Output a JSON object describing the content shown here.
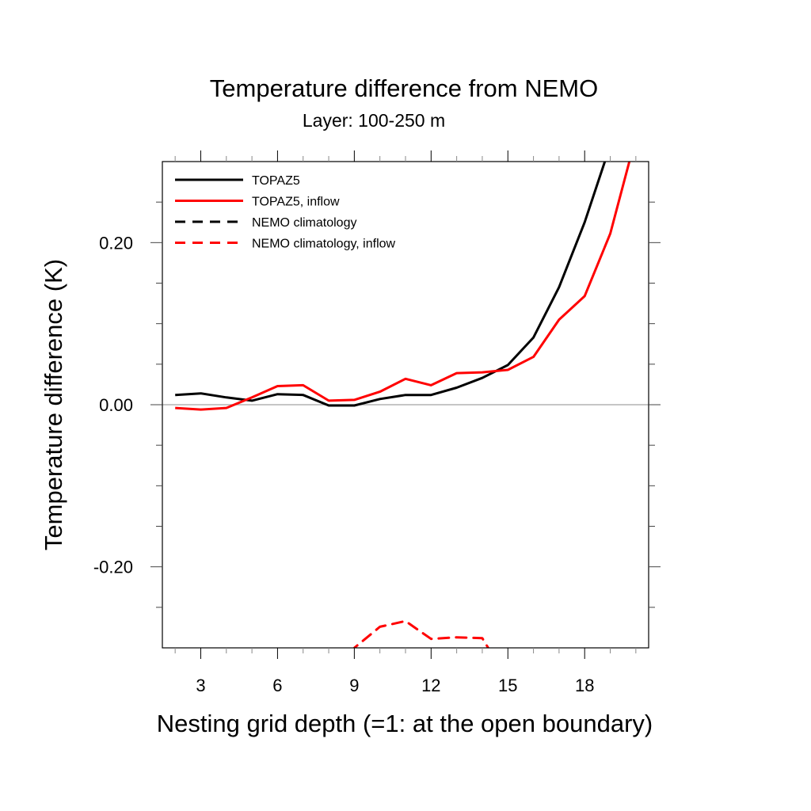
{
  "chart_data": {
    "type": "line",
    "title": "Temperature difference from NEMO",
    "subtitle": "Layer: 100-250 m",
    "xlabel": "Nesting grid depth (=1: at the open boundary)",
    "ylabel": "Temperature difference (K)",
    "xlim": [
      1.5,
      20.5
    ],
    "ylim": [
      -0.3,
      0.3
    ],
    "x_major_ticks": [
      3,
      6,
      9,
      12,
      15,
      18
    ],
    "x_tick_labels": [
      "3",
      "6",
      "9",
      "12",
      "15",
      "18"
    ],
    "x_minor_step": 1,
    "y_major_ticks": [
      -0.2,
      0.0,
      0.2
    ],
    "y_tick_labels": [
      "-0.20",
      "0.00",
      "0.20"
    ],
    "y_minor_step": 0.05,
    "reference_line": {
      "y": 0.0,
      "color": "#b4b4b4"
    },
    "grid": false,
    "legend_position": "top-left",
    "series": [
      {
        "name": "TOPAZ5",
        "color": "#000000",
        "dash": "solid",
        "x": [
          2,
          3,
          4,
          5,
          6,
          7,
          8,
          9,
          10,
          11,
          12,
          13,
          14,
          15,
          16,
          17,
          18,
          19
        ],
        "values": [
          0.012,
          0.014,
          0.009,
          0.005,
          0.013,
          0.012,
          -0.001,
          -0.001,
          0.007,
          0.012,
          0.012,
          0.021,
          0.033,
          0.049,
          0.083,
          0.145,
          0.225,
          0.32
        ]
      },
      {
        "name": "TOPAZ5, inflow",
        "color": "#ff0000",
        "dash": "solid",
        "x": [
          2,
          3,
          4,
          5,
          6,
          7,
          8,
          9,
          10,
          11,
          12,
          13,
          14,
          15,
          16,
          17,
          18,
          19,
          20
        ],
        "values": [
          -0.004,
          -0.006,
          -0.004,
          0.009,
          0.023,
          0.024,
          0.005,
          0.006,
          0.016,
          0.032,
          0.024,
          0.039,
          0.04,
          0.043,
          0.059,
          0.105,
          0.134,
          0.211,
          0.33
        ]
      },
      {
        "name": "NEMO climatology",
        "color": "#000000",
        "dash": "dashed",
        "x": [],
        "values": []
      },
      {
        "name": "NEMO climatology, inflow",
        "color": "#ff0000",
        "dash": "dashed",
        "x": [
          8,
          9,
          10,
          11,
          12,
          13,
          14,
          15
        ],
        "values": [
          -0.34,
          -0.3,
          -0.274,
          -0.267,
          -0.289,
          -0.287,
          -0.288,
          -0.34
        ]
      }
    ]
  }
}
